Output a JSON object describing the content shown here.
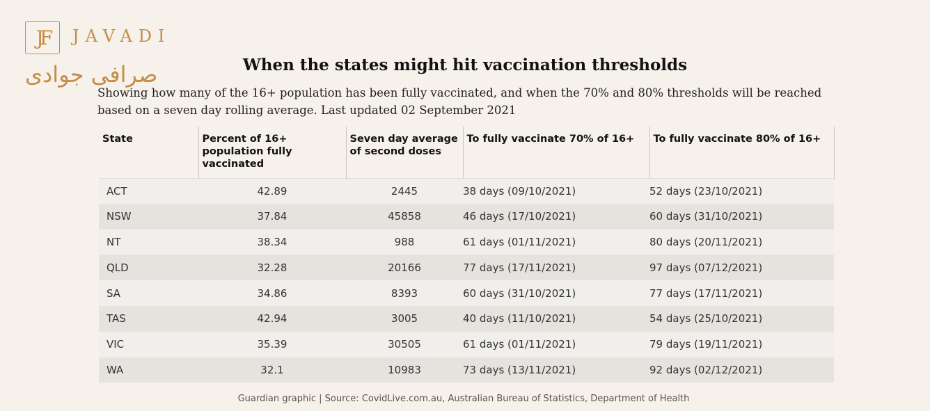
{
  "logo": {
    "word": "JAVADI",
    "monogram": "JF",
    "arabic": "صرافی جوادی"
  },
  "title": "When the states might hit vaccination thresholds",
  "subtitle": "Showing how many of the 16+ population has been fully vaccinated, and when the 70% and 80% thresholds will be reached based on a seven day rolling average. Last updated 02 September 2021",
  "table": {
    "headers": [
      "State",
      "Percent of 16+ population fully vaccinated",
      "Seven day average of second doses",
      "To fully vaccinate 70% of 16+",
      "To fully vaccinate 80% of 16+"
    ],
    "rows": [
      [
        "ACT",
        "42.89",
        "2445",
        "38 days (09/10/2021)",
        "52 days (23/10/2021)"
      ],
      [
        "NSW",
        "37.84",
        "45858",
        "46 days (17/10/2021)",
        "60 days (31/10/2021)"
      ],
      [
        "NT",
        "38.34",
        "988",
        "61 days (01/11/2021)",
        "80 days (20/11/2021)"
      ],
      [
        "QLD",
        "32.28",
        "20166",
        "77 days (17/11/2021)",
        "97 days (07/12/2021)"
      ],
      [
        "SA",
        "34.86",
        "8393",
        "60 days (31/10/2021)",
        "77 days (17/11/2021)"
      ],
      [
        "TAS",
        "42.94",
        "3005",
        "40 days (11/10/2021)",
        "54 days (25/10/2021)"
      ],
      [
        "VIC",
        "35.39",
        "30505",
        "61 days (01/11/2021)",
        "79 days (19/11/2021)"
      ],
      [
        "WA",
        "32.1",
        "10983",
        "73 days (13/11/2021)",
        "92 days (02/12/2021)"
      ]
    ]
  },
  "source": "Guardian graphic | Source: CovidLive.com.au, Australian Bureau of Statistics, Department of Health",
  "colors": {
    "brand": "#c58d47",
    "background": "#f6f1ea",
    "row_light": "#f1efec",
    "row_dark": "#e6e3df"
  }
}
